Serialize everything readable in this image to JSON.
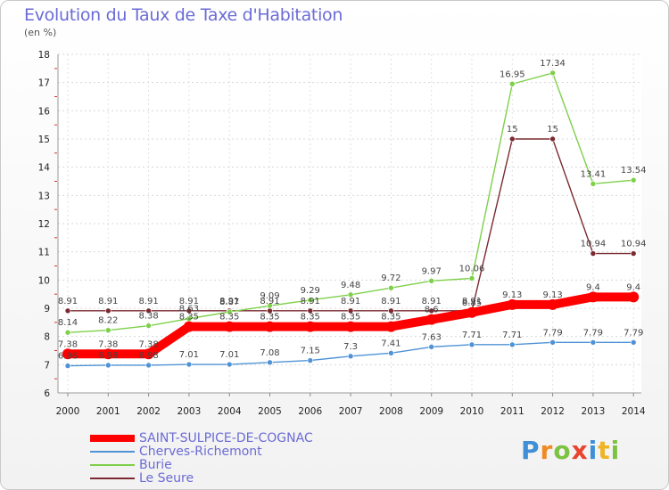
{
  "title": "Evolution du Taux de Taxe d'Habitation",
  "subtitle": "(en %)",
  "logo": {
    "text": "Proxiti",
    "letters": [
      {
        "ch": "P",
        "color": "#3e8fd6"
      },
      {
        "ch": "r",
        "color": "#f08a24"
      },
      {
        "ch": "o",
        "color": "#7dc242"
      },
      {
        "ch": "x",
        "color": "#e8442e"
      },
      {
        "ch": "i",
        "color": "#3e8fd6"
      },
      {
        "ch": "t",
        "color": "#f0b323"
      },
      {
        "ch": "i",
        "color": "#7dc242"
      }
    ]
  },
  "chart_data": {
    "type": "line",
    "x": [
      "2000",
      "2001",
      "2002",
      "2003",
      "2004",
      "2005",
      "2006",
      "2007",
      "2008",
      "2009",
      "2010",
      "2011",
      "2012",
      "2013",
      "2014"
    ],
    "yticks": [
      "6",
      "7",
      "8",
      "9",
      "10",
      "11",
      "12",
      "13",
      "14",
      "15",
      "16",
      "17",
      "18"
    ],
    "ylim": [
      6,
      18
    ],
    "grid": true,
    "legend_position": "bottom-left",
    "series": [
      {
        "name": "SAINT-SULPICE-DE-COGNAC",
        "color": "#ff0000",
        "emphasis": true,
        "values": [
          7.38,
          7.38,
          7.38,
          8.35,
          8.35,
          8.35,
          8.35,
          8.35,
          8.35,
          8.6,
          8.85,
          9.13,
          9.13,
          9.4,
          9.4
        ],
        "labels": [
          "7.38",
          "7.38",
          "7.38",
          "8.35",
          "8.35",
          "8.35",
          "8.35",
          "8.35",
          "8.35",
          "8.6",
          "8.85",
          "9.13",
          "9.13",
          "9.4",
          "9.4"
        ]
      },
      {
        "name": "Cherves-Richemont",
        "color": "#4f93d6",
        "values": [
          6.96,
          6.98,
          6.98,
          7.01,
          7.01,
          7.08,
          7.15,
          7.3,
          7.41,
          7.63,
          7.71,
          7.71,
          7.79,
          7.79,
          7.79
        ],
        "labels": [
          "6.96",
          "6.98",
          "6.98",
          "7.01",
          "7.01",
          "7.08",
          "7.15",
          "7.3",
          "7.41",
          "7.63",
          "7.71",
          "7.71",
          "7.79",
          "7.79",
          "7.79"
        ]
      },
      {
        "name": "Burie",
        "color": "#7ed04b",
        "values": [
          8.14,
          8.22,
          8.38,
          8.63,
          8.87,
          9.09,
          9.29,
          9.48,
          9.72,
          9.97,
          10.06,
          16.95,
          17.34,
          13.41,
          13.54
        ],
        "labels": [
          "8.14",
          "8.22",
          "8.38",
          "8.63",
          "8.87",
          "9.09",
          "9.29",
          "9.48",
          "9.72",
          "9.97",
          "10.06",
          "16.95",
          "17.34",
          "13.41",
          "13.54"
        ]
      },
      {
        "name": "Le Seure",
        "color": "#7a2a30",
        "values": [
          8.91,
          8.91,
          8.91,
          8.91,
          8.91,
          8.91,
          8.91,
          8.91,
          8.91,
          8.91,
          8.91,
          15,
          15,
          10.94,
          10.94
        ],
        "labels": [
          "8.91",
          "8.91",
          "8.91",
          "8.91",
          "8.91",
          "8.91",
          "8.91",
          "8.91",
          "8.91",
          "8.91",
          "8.91",
          "15",
          "15",
          "10.94",
          "10.94"
        ]
      }
    ]
  },
  "legend": [
    {
      "label": "SAINT-SULPICE-DE-COGNAC",
      "color": "#ff0000"
    },
    {
      "label": "Cherves-Richemont",
      "color": "#4f93d6"
    },
    {
      "label": "Burie",
      "color": "#7ed04b"
    },
    {
      "label": "Le Seure",
      "color": "#7a2a30"
    }
  ]
}
